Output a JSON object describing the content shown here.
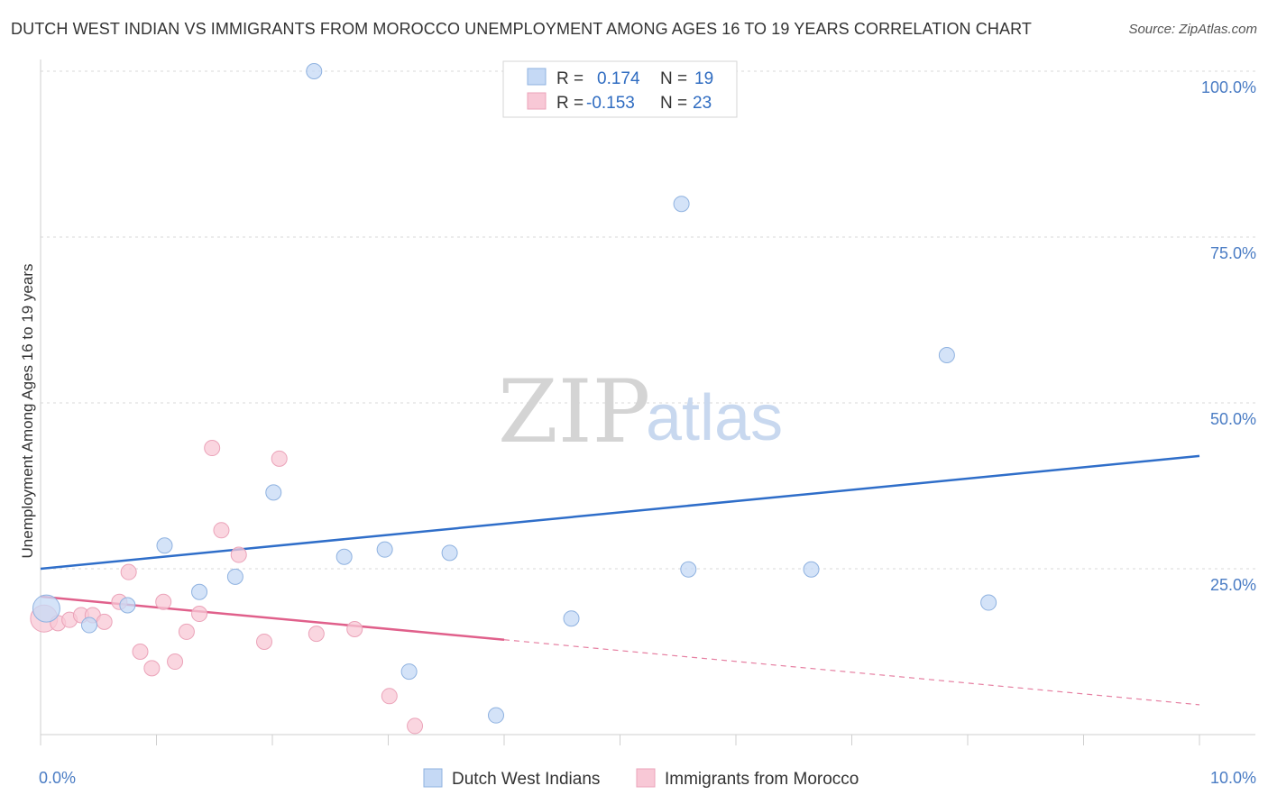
{
  "header": {
    "title": "DUTCH WEST INDIAN VS IMMIGRANTS FROM MOROCCO UNEMPLOYMENT AMONG AGES 16 TO 19 YEARS CORRELATION CHART",
    "source": "Source: ZipAtlas.com"
  },
  "watermark": {
    "zip": "ZIP",
    "atlas": "atlas"
  },
  "legend": {
    "r_label": "R =",
    "n_label": "N =",
    "blue": {
      "r": "0.174",
      "n": "19"
    },
    "pink": {
      "r": "-0.153",
      "n": "23"
    }
  },
  "colors": {
    "blue_fill": "#c5d9f5",
    "blue_stroke": "#8fb2e0",
    "blue_line": "#2f6ec9",
    "pink_fill": "#f8c8d6",
    "pink_stroke": "#eba3b9",
    "pink_line": "#e0608b",
    "tick_text": "#4a7cc4",
    "grid": "#d8d8d8"
  },
  "chart_data": {
    "type": "scatter",
    "title": "DUTCH WEST INDIAN VS IMMIGRANTS FROM MOROCCO UNEMPLOYMENT AMONG AGES 16 TO 19 YEARS CORRELATION CHART",
    "xlabel": "",
    "ylabel": "Unemployment Among Ages 16 to 19 years",
    "xlim": [
      0,
      10
    ],
    "ylim": [
      0,
      100
    ],
    "x_tick_labels": [
      "0.0%",
      "10.0%"
    ],
    "y_ticks": [
      25,
      50,
      75,
      100
    ],
    "y_tick_labels": [
      "25.0%",
      "50.0%",
      "75.0%",
      "100.0%"
    ],
    "grid": "horizontal dashed",
    "legend_position": "top-center",
    "series": [
      {
        "name": "Dutch West Indians",
        "color": "#c5d9f5",
        "points": [
          {
            "x": 0.05,
            "y": 19.0,
            "size": "large"
          },
          {
            "x": 0.42,
            "y": 16.5
          },
          {
            "x": 0.75,
            "y": 19.5
          },
          {
            "x": 1.07,
            "y": 28.5
          },
          {
            "x": 1.37,
            "y": 21.5
          },
          {
            "x": 1.68,
            "y": 23.8
          },
          {
            "x": 2.01,
            "y": 36.5
          },
          {
            "x": 2.36,
            "y": 100.0
          },
          {
            "x": 2.62,
            "y": 26.8
          },
          {
            "x": 2.97,
            "y": 27.9
          },
          {
            "x": 3.18,
            "y": 9.5
          },
          {
            "x": 3.53,
            "y": 27.4
          },
          {
            "x": 3.93,
            "y": 2.9
          },
          {
            "x": 4.58,
            "y": 17.5
          },
          {
            "x": 5.53,
            "y": 80.0
          },
          {
            "x": 5.59,
            "y": 24.9
          },
          {
            "x": 6.65,
            "y": 24.9
          },
          {
            "x": 7.82,
            "y": 57.2
          },
          {
            "x": 8.18,
            "y": 19.9
          }
        ],
        "trend": {
          "x": [
            0,
            10
          ],
          "y": [
            25.0,
            42.0
          ]
        }
      },
      {
        "name": "Immigrants from Morocco",
        "color": "#f8c8d6",
        "points": [
          {
            "x": 0.03,
            "y": 17.5,
            "size": "large"
          },
          {
            "x": 0.15,
            "y": 16.8
          },
          {
            "x": 0.25,
            "y": 17.3
          },
          {
            "x": 0.35,
            "y": 18.0
          },
          {
            "x": 0.45,
            "y": 18.0
          },
          {
            "x": 0.55,
            "y": 17.0
          },
          {
            "x": 0.68,
            "y": 20.0
          },
          {
            "x": 0.76,
            "y": 24.5
          },
          {
            "x": 0.86,
            "y": 12.5
          },
          {
            "x": 0.96,
            "y": 10.0
          },
          {
            "x": 1.06,
            "y": 20.0
          },
          {
            "x": 1.16,
            "y": 11.0
          },
          {
            "x": 1.26,
            "y": 15.5
          },
          {
            "x": 1.37,
            "y": 18.2
          },
          {
            "x": 1.48,
            "y": 43.2
          },
          {
            "x": 1.56,
            "y": 30.8
          },
          {
            "x": 1.71,
            "y": 27.1
          },
          {
            "x": 1.93,
            "y": 14.0
          },
          {
            "x": 2.06,
            "y": 41.6
          },
          {
            "x": 2.38,
            "y": 15.2
          },
          {
            "x": 2.71,
            "y": 15.9
          },
          {
            "x": 3.01,
            "y": 5.8
          },
          {
            "x": 3.23,
            "y": 1.3
          }
        ],
        "trend": {
          "x": [
            0,
            4.0
          ],
          "y": [
            20.8,
            14.3
          ],
          "dashed_to": {
            "x": 10,
            "y": 4.5
          }
        }
      }
    ]
  }
}
